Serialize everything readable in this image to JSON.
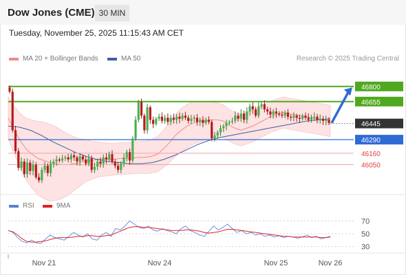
{
  "header": {
    "title": "Dow Jones (CME)",
    "timeframe": "30 MIN",
    "timestamp": "Tuesday, November 25, 2025 11:15:43 AM CET",
    "credit": "Research © 2025 Trading Central"
  },
  "legend": {
    "ma20": {
      "label": "MA 20 + Bollinger Bands",
      "color": "#f08a8a"
    },
    "ma50": {
      "label": "MA 50",
      "color": "#3a5fa0"
    },
    "rsi": {
      "label": "RSI",
      "color": "#5b7fd6"
    },
    "rsi_ma": {
      "label": "9MA",
      "color": "#e02020"
    }
  },
  "chart_data": [
    {
      "type": "candlestick",
      "title": "",
      "levels": [
        {
          "value": "46800",
          "type": "resistance",
          "color": "#4fa81e"
        },
        {
          "value": "46655",
          "type": "resistance",
          "color": "#4fa81e"
        },
        {
          "value": "46445",
          "type": "last",
          "color": "#333333"
        },
        {
          "value": "46290",
          "type": "pivot",
          "color": "#2f6ad6"
        },
        {
          "value": "46160",
          "type": "support",
          "color": "#e23c3c"
        },
        {
          "value": "46050",
          "type": "support",
          "color": "#e23c3c"
        }
      ],
      "x_ticks": [
        "Nov 21",
        "Nov 24",
        "Nov 25",
        "Nov 26"
      ],
      "price_range": [
        45770,
        46950
      ],
      "bars": [
        46750,
        46380,
        46180,
        46020,
        46080,
        45960,
        46070,
        45990,
        46050,
        45930,
        45900,
        46000,
        46040,
        45970,
        46060,
        46080,
        46100,
        46090,
        46110,
        46120,
        46100,
        46140,
        46120,
        46080,
        46130,
        46100,
        46060,
        46110,
        46000,
        46030,
        46080,
        46060,
        46120,
        46100,
        46150,
        46080,
        46040,
        46000,
        46060,
        46120,
        46170,
        46090,
        46300,
        46480,
        46650,
        46520,
        46380,
        46600,
        46480,
        46440,
        46490,
        46510,
        46470,
        46500,
        46460,
        46500,
        46480,
        46510,
        46490,
        46520,
        46500,
        46470,
        46490,
        46500,
        46460,
        46480,
        46450,
        46480,
        46460,
        46300,
        46330,
        46360,
        46400,
        46420,
        46450,
        46460,
        46470,
        46520,
        46490,
        46540,
        46480,
        46560,
        46610,
        46580,
        46520,
        46610,
        46630,
        46580,
        46560,
        46530,
        46560,
        46540,
        46530,
        46520,
        46550,
        46510,
        46500,
        46520,
        46500,
        46490,
        46520,
        46500,
        46480,
        46500,
        46510,
        46480,
        46490,
        46470,
        46480,
        46450
      ],
      "ma20": [
        46500,
        46380,
        46280,
        46200,
        46150,
        46110,
        46090,
        46070,
        46060,
        46050,
        46050,
        46060,
        46070,
        46090,
        46090,
        46100,
        46100,
        46100,
        46105,
        46110,
        46110,
        46115,
        46120,
        46120,
        46130,
        46150,
        46200,
        46260,
        46330,
        46380,
        46420,
        46450,
        46460,
        46470,
        46480,
        46480,
        46470,
        46430,
        46400,
        46380,
        46400,
        46420,
        46450,
        46480,
        46510,
        46530,
        46550,
        46540,
        46530,
        46520,
        46510,
        46500,
        46490,
        46480,
        46470
      ],
      "ma50": [
        46420,
        46410,
        46380,
        46330,
        46270,
        46220,
        46170,
        46130,
        46100,
        46080,
        46070,
        46060,
        46060,
        46070,
        46100,
        46140,
        46190,
        46240,
        46280,
        46310,
        46330,
        46350,
        46370,
        46390,
        46410,
        46430,
        46450,
        46470,
        46480,
        46490
      ],
      "annotation": "arrow toward 46800"
    },
    {
      "type": "line",
      "title": "",
      "series": [
        {
          "name": "RSI"
        },
        {
          "name": "9MA"
        }
      ],
      "y_ticks": [
        "70",
        "50",
        "30"
      ],
      "ylim": [
        20,
        80
      ],
      "rsi": [
        55,
        52,
        44,
        38,
        36,
        40,
        36,
        35,
        42,
        48,
        44,
        42,
        40,
        46,
        52,
        48,
        45,
        50,
        42,
        40,
        48,
        52,
        46,
        58,
        56,
        62,
        70,
        65,
        60,
        58,
        62,
        56,
        54,
        58,
        55,
        53,
        50,
        58,
        62,
        55,
        52,
        48,
        46,
        54,
        62,
        56,
        60,
        65,
        58,
        52,
        55,
        50,
        52,
        48,
        50,
        46,
        48,
        45,
        47,
        44,
        46,
        45,
        43,
        45,
        48,
        44,
        46,
        42,
        44,
        46
      ],
      "rsi_ma": [
        55,
        53,
        48,
        42,
        38,
        37,
        37,
        38,
        39,
        41,
        43,
        44,
        44,
        44,
        45,
        46,
        46,
        47,
        47,
        46,
        46,
        47,
        48,
        51,
        54,
        57,
        60,
        61,
        61,
        60,
        60,
        59,
        58,
        57,
        56,
        55,
        55,
        55,
        56,
        56,
        55,
        54,
        52,
        51,
        52,
        53,
        55,
        57,
        57,
        56,
        55,
        54,
        53,
        52,
        51,
        50,
        49,
        48,
        47,
        46,
        46,
        45,
        45,
        45,
        45,
        45,
        45,
        44,
        44,
        45
      ]
    }
  ]
}
